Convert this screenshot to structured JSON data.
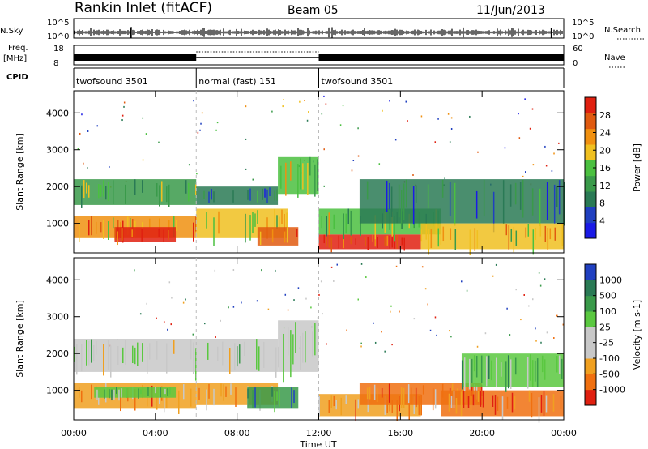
{
  "header": {
    "station": "Rankin Inlet (fitACF)",
    "beam": "Beam 05",
    "date": "11/Jun/2013"
  },
  "top_panels": {
    "nsky_label": "N.Sky",
    "nsky_ticks": [
      "10^5",
      "10^0"
    ],
    "nsearch_label": "N.Search",
    "nsearch_ticks": [
      "10^5",
      "10^0"
    ],
    "freq_label_line1": "Freq.",
    "freq_label_line2": "[MHz]",
    "freq_ticks": [
      "18",
      "8"
    ],
    "nave_label": "Nave",
    "nave_ticks": [
      "60",
      "0"
    ],
    "cpid_label": "CPID",
    "cpid_segments": [
      {
        "label": "twofsound 3501",
        "start_hour": 0,
        "end_hour": 6
      },
      {
        "label": "normal (fast) 151",
        "start_hour": 6,
        "end_hour": 12
      },
      {
        "label": "twofsound 3501",
        "start_hour": 12,
        "end_hour": 24
      }
    ]
  },
  "colors": {
    "power": [
      "#1a1ae6",
      "#2040c0",
      "#2a7a55",
      "#3a9a4a",
      "#4bc040",
      "#f0c020",
      "#f09010",
      "#e05a10",
      "#e02010"
    ],
    "velocity": [
      "#2040c0",
      "#2a7a55",
      "#3a9a4a",
      "#5ac840",
      "#c8c8c8",
      "#c8c8c8",
      "#f0a020",
      "#f07010",
      "#e02010"
    ]
  },
  "chart_data": [
    {
      "type": "heatmap",
      "ylabel": "Slant Range [km]",
      "yticks": [
        "1000",
        "2000",
        "3000",
        "4000"
      ],
      "ylim": [
        200,
        4600
      ],
      "xlim": [
        0,
        24
      ],
      "colorbar_label": "Power [dB]",
      "colorbar_ticks": [
        "4",
        "8",
        "12",
        "16",
        "20",
        "24",
        "28"
      ],
      "colorbar_range": [
        0,
        32
      ],
      "bands": [
        {
          "t0": 0.0,
          "t1": 6.0,
          "r0": 1500,
          "r1": 2200,
          "level": 3
        },
        {
          "t0": 0.0,
          "t1": 6.0,
          "r0": 600,
          "r1": 1200,
          "level": 6
        },
        {
          "t0": 2.0,
          "t1": 5.0,
          "r0": 500,
          "r1": 900,
          "level": 8
        },
        {
          "t0": 6.0,
          "t1": 10.0,
          "r0": 1500,
          "r1": 2000,
          "level": 2
        },
        {
          "t0": 6.0,
          "t1": 10.5,
          "r0": 600,
          "r1": 1400,
          "level": 5
        },
        {
          "t0": 9.0,
          "t1": 11.0,
          "r0": 400,
          "r1": 900,
          "level": 7
        },
        {
          "t0": 10.0,
          "t1": 12.0,
          "r0": 1800,
          "r1": 2800,
          "level": 4
        },
        {
          "t0": 12.0,
          "t1": 17.0,
          "r0": 300,
          "r1": 700,
          "level": 8
        },
        {
          "t0": 12.0,
          "t1": 18.0,
          "r0": 700,
          "r1": 1400,
          "level": 4
        },
        {
          "t0": 14.0,
          "t1": 24.0,
          "r0": 1000,
          "r1": 2200,
          "level": 2
        },
        {
          "t0": 17.0,
          "t1": 24.0,
          "r0": 300,
          "r1": 1000,
          "level": 5
        }
      ]
    },
    {
      "type": "heatmap",
      "ylabel": "Slant Range [km]",
      "yticks": [
        "1000",
        "2000",
        "3000",
        "4000"
      ],
      "ylim": [
        200,
        4600
      ],
      "xlim": [
        0,
        24
      ],
      "colorbar_label": "Velocity [m s-1]",
      "colorbar_ticks": [
        "1000",
        "500",
        "100",
        "25",
        "-25",
        "-100",
        "-500",
        "-1000"
      ],
      "bands": [
        {
          "t0": 0.0,
          "t1": 10.0,
          "r0": 1500,
          "r1": 2400,
          "level": 4
        },
        {
          "t0": 10.0,
          "t1": 12.0,
          "r0": 1500,
          "r1": 2900,
          "level": 4
        },
        {
          "t0": 0.0,
          "t1": 6.0,
          "r0": 500,
          "r1": 1200,
          "level": 6
        },
        {
          "t0": 1.0,
          "t1": 5.0,
          "r0": 800,
          "r1": 1100,
          "level": 3
        },
        {
          "t0": 6.0,
          "t1": 10.0,
          "r0": 600,
          "r1": 1200,
          "level": 6
        },
        {
          "t0": 8.5,
          "t1": 11.0,
          "r0": 500,
          "r1": 1100,
          "level": 2
        },
        {
          "t0": 12.0,
          "t1": 17.0,
          "r0": 300,
          "r1": 900,
          "level": 6
        },
        {
          "t0": 14.0,
          "t1": 20.0,
          "r0": 600,
          "r1": 1200,
          "level": 7
        },
        {
          "t0": 18.0,
          "t1": 24.0,
          "r0": 300,
          "r1": 1000,
          "level": 7
        },
        {
          "t0": 19.0,
          "t1": 24.0,
          "r0": 1100,
          "r1": 2000,
          "level": 3
        }
      ]
    }
  ],
  "xaxis": {
    "ticks": [
      "00:00",
      "04:00",
      "08:00",
      "12:00",
      "16:00",
      "20:00",
      "00:00"
    ],
    "label": "Time UT"
  }
}
